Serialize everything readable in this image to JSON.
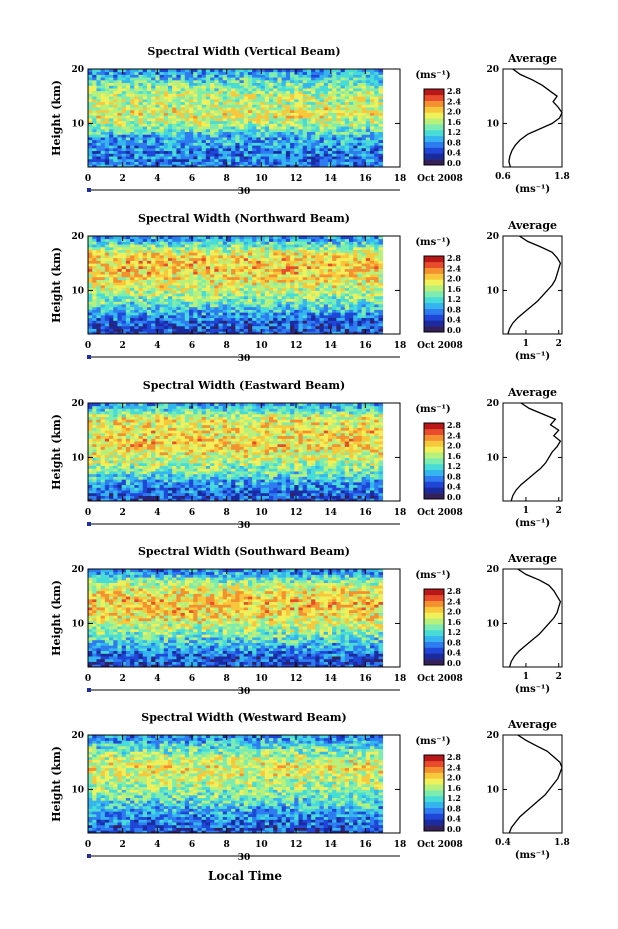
{
  "figure": {
    "date_label": "Oct 2008",
    "day_marker_label": "30",
    "xlabel": "Local Time",
    "average_title": "Average",
    "ylabel": "Height (km)",
    "colorbar_unit": "(ms⁻¹)",
    "average_unit": "(ms⁻¹)",
    "colorbar_ticks": [
      "0.0",
      "0.4",
      "0.8",
      "1.2",
      "1.6",
      "2.0",
      "2.4",
      "2.8"
    ],
    "x_ticks": [
      "0",
      "2",
      "4",
      "6",
      "8",
      "10",
      "12",
      "14",
      "16",
      "18"
    ],
    "y_ticks": [
      "10",
      "20"
    ],
    "colors": {
      "colormap": [
        "#35215a",
        "#1b2b9e",
        "#2046d8",
        "#2d7cf0",
        "#35b5f0",
        "#48dcd8",
        "#7cecb0",
        "#b8f07c",
        "#f0f05a",
        "#f8c83c",
        "#f49030",
        "#e84c2c",
        "#b81818"
      ]
    }
  },
  "chart_data": [
    {
      "type": "heatmap",
      "title": "Spectral Width (Vertical Beam)",
      "x_range": [
        0,
        18
      ],
      "y_range": [
        2,
        20
      ],
      "data_x_extent": [
        0,
        17
      ],
      "z_range": [
        0.0,
        2.8
      ],
      "xlabel": "Local Time",
      "ylabel": "Height (km)",
      "colorbar_label": "(ms⁻¹)",
      "average_profile": {
        "xlim": [
          0.6,
          1.8
        ],
        "x_tick_labels": [
          "0.6",
          "1.8"
        ],
        "ylim": [
          2,
          20
        ],
        "y_tick_labels": [
          "10",
          "20"
        ],
        "height_km": [
          2,
          3,
          4,
          5,
          6,
          7,
          8,
          9,
          10,
          11,
          12,
          13,
          14,
          15,
          16,
          17,
          18,
          19,
          20
        ],
        "width_ms": [
          0.75,
          0.72,
          0.74,
          0.78,
          0.85,
          0.95,
          1.1,
          1.35,
          1.6,
          1.75,
          1.8,
          1.72,
          1.62,
          1.7,
          1.55,
          1.4,
          1.2,
          0.95,
          0.8
        ]
      }
    },
    {
      "type": "heatmap",
      "title": "Spectral Width (Northward Beam)",
      "x_range": [
        0,
        18
      ],
      "y_range": [
        2,
        20
      ],
      "data_x_extent": [
        0,
        17
      ],
      "z_range": [
        0.0,
        2.8
      ],
      "xlabel": "Local Time",
      "ylabel": "Height (km)",
      "colorbar_label": "(ms⁻¹)",
      "average_profile": {
        "xlim": [
          0.3,
          2.1
        ],
        "x_tick_labels": [
          "1",
          "2"
        ],
        "ylim": [
          2,
          20
        ],
        "y_tick_labels": [
          "10",
          "20"
        ],
        "height_km": [
          2,
          3,
          4,
          5,
          6,
          7,
          8,
          9,
          10,
          11,
          12,
          13,
          14,
          15,
          16,
          17,
          18,
          19,
          20
        ],
        "width_ms": [
          0.45,
          0.5,
          0.6,
          0.75,
          0.95,
          1.15,
          1.35,
          1.5,
          1.65,
          1.8,
          1.9,
          1.95,
          2.0,
          2.05,
          1.95,
          1.8,
          1.45,
          1.05,
          0.8
        ]
      }
    },
    {
      "type": "heatmap",
      "title": "Spectral Width (Eastward Beam)",
      "x_range": [
        0,
        18
      ],
      "y_range": [
        2,
        20
      ],
      "data_x_extent": [
        0,
        17
      ],
      "z_range": [
        0.0,
        2.8
      ],
      "xlabel": "Local Time",
      "ylabel": "Height (km)",
      "colorbar_label": "(ms⁻¹)",
      "average_profile": {
        "xlim": [
          0.3,
          2.1
        ],
        "x_tick_labels": [
          "1",
          "2"
        ],
        "ylim": [
          2,
          20
        ],
        "y_tick_labels": [
          "10",
          "20"
        ],
        "height_km": [
          2,
          3,
          4,
          5,
          6,
          7,
          8,
          9,
          10,
          11,
          12,
          13,
          14,
          15,
          16,
          17,
          18,
          19,
          20
        ],
        "width_ms": [
          0.55,
          0.6,
          0.7,
          0.85,
          1.05,
          1.25,
          1.45,
          1.6,
          1.7,
          1.8,
          1.95,
          2.05,
          1.85,
          2.0,
          1.75,
          1.9,
          1.5,
          1.1,
          0.85
        ]
      }
    },
    {
      "type": "heatmap",
      "title": "Spectral Width (Southward Beam)",
      "x_range": [
        0,
        18
      ],
      "y_range": [
        2,
        20
      ],
      "data_x_extent": [
        0,
        17
      ],
      "z_range": [
        0.0,
        2.8
      ],
      "xlabel": "Local Time",
      "ylabel": "Height (km)",
      "colorbar_label": "(ms⁻¹)",
      "average_profile": {
        "xlim": [
          0.3,
          2.1
        ],
        "x_tick_labels": [
          "1",
          "2"
        ],
        "ylim": [
          2,
          20
        ],
        "y_tick_labels": [
          "10",
          "20"
        ],
        "height_km": [
          2,
          3,
          4,
          5,
          6,
          7,
          8,
          9,
          10,
          11,
          12,
          13,
          14,
          15,
          16,
          17,
          18,
          19,
          20
        ],
        "width_ms": [
          0.5,
          0.55,
          0.65,
          0.8,
          1.0,
          1.2,
          1.4,
          1.55,
          1.7,
          1.85,
          1.95,
          2.0,
          2.05,
          1.95,
          1.85,
          1.7,
          1.4,
          1.0,
          0.75
        ]
      }
    },
    {
      "type": "heatmap",
      "title": "Spectral Width (Westward Beam)",
      "x_range": [
        0,
        18
      ],
      "y_range": [
        2,
        20
      ],
      "data_x_extent": [
        0,
        17
      ],
      "z_range": [
        0.0,
        2.8
      ],
      "xlabel": "Local Time",
      "ylabel": "Height (km)",
      "colorbar_label": "(ms⁻¹)",
      "average_profile": {
        "xlim": [
          0.4,
          1.8
        ],
        "x_tick_labels": [
          "0.4",
          "1.8"
        ],
        "ylim": [
          2,
          20
        ],
        "y_tick_labels": [
          "10",
          "20"
        ],
        "height_km": [
          2,
          3,
          4,
          5,
          6,
          7,
          8,
          9,
          10,
          11,
          12,
          13,
          14,
          15,
          16,
          17,
          18,
          19,
          20
        ],
        "width_ms": [
          0.55,
          0.6,
          0.7,
          0.8,
          0.95,
          1.1,
          1.25,
          1.4,
          1.5,
          1.6,
          1.7,
          1.75,
          1.8,
          1.75,
          1.6,
          1.45,
          1.2,
          0.95,
          0.75
        ]
      }
    }
  ]
}
